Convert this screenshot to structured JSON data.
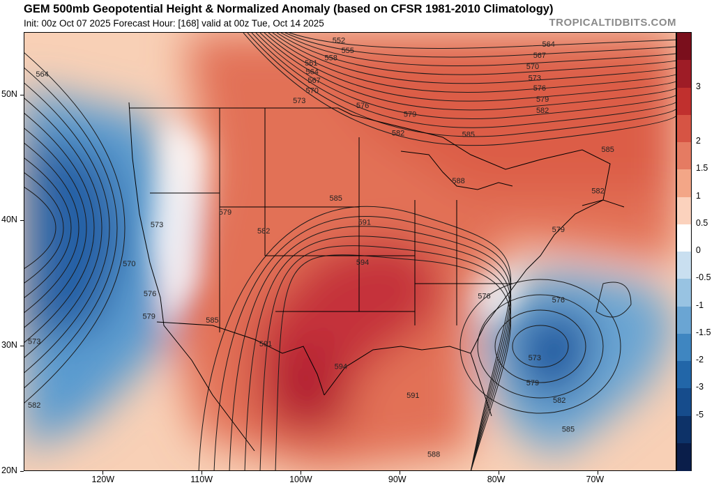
{
  "header": {
    "title": "GEM 500mb Geopotential Height & Normalized Anomaly (based on CFSR 1981-2010 Climatology)",
    "subtitle": "Init: 00z Oct 07 2025   Forecast Hour: [168]   valid at 00z Tue, Oct 14 2025",
    "credit": "TROPICALTIDBITS.COM"
  },
  "map": {
    "lat_labels": [
      "50N",
      "40N",
      "30N",
      "20N"
    ],
    "lon_labels": [
      "120W",
      "110W",
      "100W",
      "90W",
      "80W",
      "70W"
    ],
    "lon_range": [
      -128,
      -62
    ],
    "lat_range": [
      20,
      55
    ],
    "colors": {
      "strong_positive": "#b2182b",
      "positive": "#e06a50",
      "weak_positive": "#f6c2a6",
      "neutral": "#ffffff",
      "weak_negative": "#b8d6ea",
      "negative": "#4a90c8",
      "strong_negative": "#1e5aa0",
      "contour": "#1a1a1a",
      "border": "#000000"
    },
    "contour_labels": [
      {
        "text": "552",
        "lon": -96.2,
        "lat": 54.2
      },
      {
        "text": "555",
        "lon": -95.3,
        "lat": 53.4
      },
      {
        "text": "558",
        "lon": -97.0,
        "lat": 52.8
      },
      {
        "text": "561",
        "lon": -99.0,
        "lat": 52.4
      },
      {
        "text": "564",
        "lon": -98.9,
        "lat": 51.7
      },
      {
        "text": "567",
        "lon": -98.7,
        "lat": 51.0
      },
      {
        "text": "570",
        "lon": -98.9,
        "lat": 50.2
      },
      {
        "text": "573",
        "lon": -100.2,
        "lat": 49.4
      },
      {
        "text": "576",
        "lon": -93.8,
        "lat": 49.0
      },
      {
        "text": "579",
        "lon": -89.0,
        "lat": 48.3
      },
      {
        "text": "582",
        "lon": -90.2,
        "lat": 46.8
      },
      {
        "text": "585",
        "lon": -83.1,
        "lat": 46.7
      },
      {
        "text": "588",
        "lon": -84.1,
        "lat": 43.0
      },
      {
        "text": "564",
        "lon": -126.2,
        "lat": 51.5
      },
      {
        "text": "573",
        "lon": -114.6,
        "lat": 39.5
      },
      {
        "text": "579",
        "lon": -107.7,
        "lat": 40.5
      },
      {
        "text": "582",
        "lon": -103.8,
        "lat": 39.0
      },
      {
        "text": "585",
        "lon": -96.5,
        "lat": 41.6
      },
      {
        "text": "591",
        "lon": -93.6,
        "lat": 39.7
      },
      {
        "text": "594",
        "lon": -93.8,
        "lat": 36.5
      },
      {
        "text": "570",
        "lon": -117.4,
        "lat": 36.4
      },
      {
        "text": "576",
        "lon": -115.3,
        "lat": 34.0
      },
      {
        "text": "579",
        "lon": -115.4,
        "lat": 32.2
      },
      {
        "text": "585",
        "lon": -109.0,
        "lat": 31.9
      },
      {
        "text": "591",
        "lon": -103.6,
        "lat": 30.0
      },
      {
        "text": "594",
        "lon": -96.0,
        "lat": 28.2
      },
      {
        "text": "591",
        "lon": -88.7,
        "lat": 25.9
      },
      {
        "text": "588",
        "lon": -86.6,
        "lat": 21.2
      },
      {
        "text": "573",
        "lon": -127.0,
        "lat": 30.2
      },
      {
        "text": "582",
        "lon": -127.0,
        "lat": 25.1
      },
      {
        "text": "564",
        "lon": -75.0,
        "lat": 53.9
      },
      {
        "text": "567",
        "lon": -75.9,
        "lat": 53.0
      },
      {
        "text": "570",
        "lon": -76.6,
        "lat": 52.1
      },
      {
        "text": "573",
        "lon": -76.4,
        "lat": 51.2
      },
      {
        "text": "576",
        "lon": -75.9,
        "lat": 50.4
      },
      {
        "text": "579",
        "lon": -75.6,
        "lat": 49.5
      },
      {
        "text": "582",
        "lon": -75.6,
        "lat": 48.6
      },
      {
        "text": "585",
        "lon": -69.0,
        "lat": 45.5
      },
      {
        "text": "582",
        "lon": -70.0,
        "lat": 42.2
      },
      {
        "text": "579",
        "lon": -74.0,
        "lat": 39.1
      },
      {
        "text": "576",
        "lon": -74.0,
        "lat": 33.5
      },
      {
        "text": "576",
        "lon": -81.5,
        "lat": 33.8
      },
      {
        "text": "573",
        "lon": -76.4,
        "lat": 28.9
      },
      {
        "text": "579",
        "lon": -76.6,
        "lat": 26.9
      },
      {
        "text": "582",
        "lon": -73.9,
        "lat": 25.5
      },
      {
        "text": "585",
        "lon": -73.0,
        "lat": 23.2
      }
    ]
  },
  "colorbar": {
    "labels": [
      "3",
      "2",
      "1.5",
      "1",
      "0.5",
      "0",
      "-0.5",
      "-1",
      "-1.5",
      "-2",
      "-3",
      "-5"
    ],
    "colors": [
      "#7a0f1c",
      "#9e1c26",
      "#c0302e",
      "#d65444",
      "#e57b62",
      "#f3a687",
      "#fbd2bd",
      "#ffffff",
      "#c9dff0",
      "#98c3e2",
      "#6aa5d3",
      "#3f86c1",
      "#2266a8",
      "#164c8c",
      "#0d3268",
      "#0a1e4a"
    ]
  }
}
